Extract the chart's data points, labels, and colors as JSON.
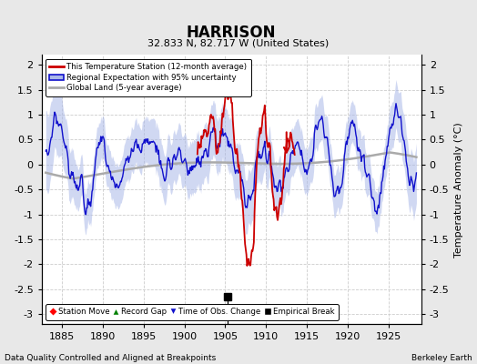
{
  "title": "HARRISON",
  "subtitle": "32.833 N, 82.717 W (United States)",
  "xlabel_bottom": "Data Quality Controlled and Aligned at Breakpoints",
  "xlabel_right": "Berkeley Earth",
  "ylabel": "Temperature Anomaly (°C)",
  "xlim": [
    1882.5,
    1929.0
  ],
  "ylim": [
    -3.2,
    2.2
  ],
  "yticks": [
    -3,
    -2.5,
    -2,
    -1.5,
    -1,
    -0.5,
    0,
    0.5,
    1,
    1.5,
    2
  ],
  "xticks": [
    1885,
    1890,
    1895,
    1900,
    1905,
    1910,
    1915,
    1920,
    1925
  ],
  "regional_fill_color": "#aab8e8",
  "regional_line_color": "#1111cc",
  "station_color": "#cc0000",
  "global_color": "#aaaaaa",
  "empirical_break_x": 1905.3,
  "empirical_break_y": -2.65,
  "bg_color": "#e8e8e8",
  "plot_bg_color": "#ffffff",
  "grid_color": "#cccccc",
  "grid_style": "--"
}
